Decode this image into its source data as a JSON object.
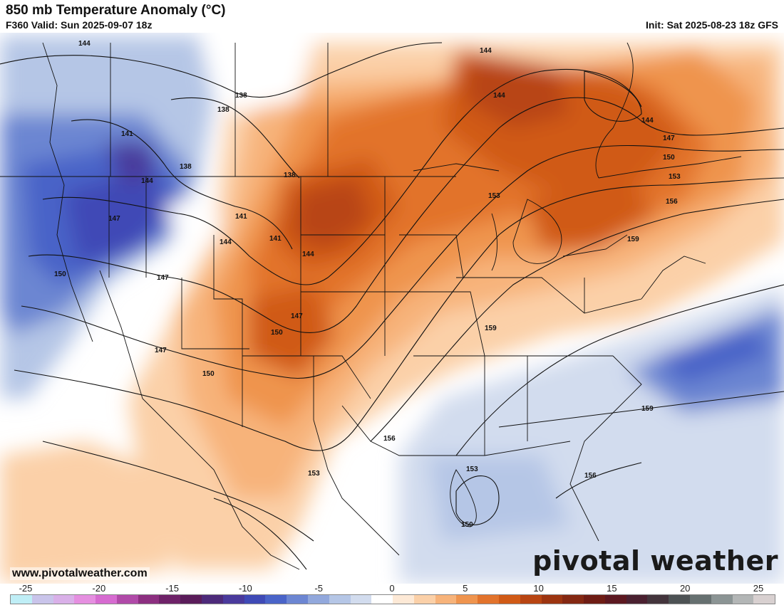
{
  "header": {
    "title": "850 mb Temperature Anomaly (°C)",
    "valid": "F360 Valid: Sun 2025-09-07 18z",
    "init": "Init: Sat 2025-08-23 18z GFS"
  },
  "footer": {
    "website": "www.pivotalweather.com",
    "brand": "pivotal weather"
  },
  "contour_labels": [
    "144",
    "138",
    "138",
    "141",
    "138",
    "144",
    "147",
    "141",
    "141",
    "144",
    "147",
    "147",
    "144",
    "150",
    "147",
    "150",
    "150",
    "153",
    "153",
    "156",
    "159",
    "159",
    "153",
    "156",
    "159",
    "147",
    "144",
    "144",
    "144",
    "138",
    "150",
    "150",
    "156",
    "153"
  ],
  "colorbar": {
    "labels": [
      "-25",
      "-20",
      "-15",
      "-10",
      "-5",
      "0",
      "5",
      "10",
      "15",
      "20",
      "25"
    ],
    "colors": [
      "#bfeef6",
      "#c9c4ea",
      "#d9b0e8",
      "#e58fe0",
      "#d66bd0",
      "#b04aa8",
      "#8c2f80",
      "#6e2268",
      "#5a1c5a",
      "#4d2a7a",
      "#4a3a9c",
      "#3f4ab6",
      "#4a64c8",
      "#6c86d2",
      "#92a8dc",
      "#b5c6e6",
      "#d2dcee",
      "#ffffff",
      "#fde9d6",
      "#fbd0a8",
      "#f7b37a",
      "#ef944e",
      "#e2732c",
      "#d05a16",
      "#b84512",
      "#9c3410",
      "#842812",
      "#6e1c14",
      "#5c1820",
      "#4a2030",
      "#43343c",
      "#4d5254",
      "#667070",
      "#8b9494",
      "#b3b6b6",
      "#d8d0d0"
    ]
  }
}
